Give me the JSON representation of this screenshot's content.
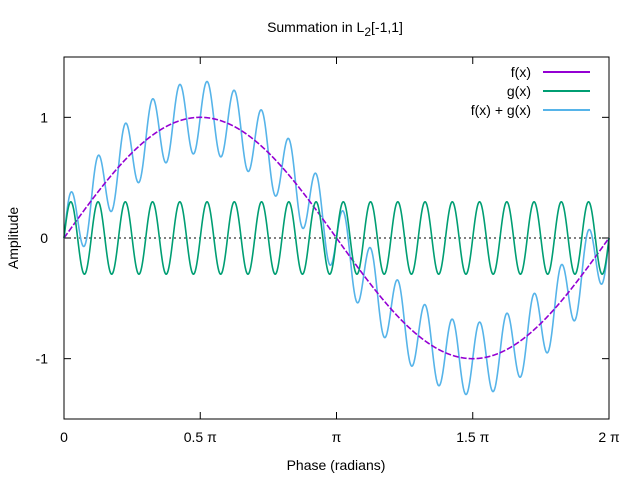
{
  "chart_data": {
    "type": "line",
    "title": "Summation in L₂[-1,1]",
    "title_parts": {
      "main": "Summation in L",
      "sub": "2",
      "tail": "[-1,1]"
    },
    "xlabel": "Phase (radians)",
    "ylabel": "Amplitude",
    "xlim": [
      0,
      6.283185307
    ],
    "ylim": [
      -1.5,
      1.5
    ],
    "x_ticks": [
      {
        "value": 0,
        "label": "0"
      },
      {
        "value": 1.570796327,
        "label": "0.5 π"
      },
      {
        "value": 3.141592654,
        "label": "π"
      },
      {
        "value": 4.71238898,
        "label": "1.5 π"
      },
      {
        "value": 6.283185307,
        "label": "2 π"
      }
    ],
    "y_ticks": [
      {
        "value": 1,
        "label": "1"
      },
      {
        "value": 0,
        "label": "0"
      },
      {
        "value": -1,
        "label": "-1"
      }
    ],
    "zero_line": true,
    "legend_position": "top-right",
    "series": [
      {
        "name": "f(x)",
        "color": "#9400d3",
        "expression": "sin(x)",
        "amplitude": 1,
        "cycles": 1
      },
      {
        "name": "g(x)",
        "color": "#009e73",
        "expression": "0.3*sin(20x)",
        "amplitude": 0.3,
        "cycles": 20
      },
      {
        "name": "f(x) + g(x)",
        "color": "#56b4e9",
        "expression": "sin(x) + 0.3*sin(20x)"
      }
    ]
  }
}
